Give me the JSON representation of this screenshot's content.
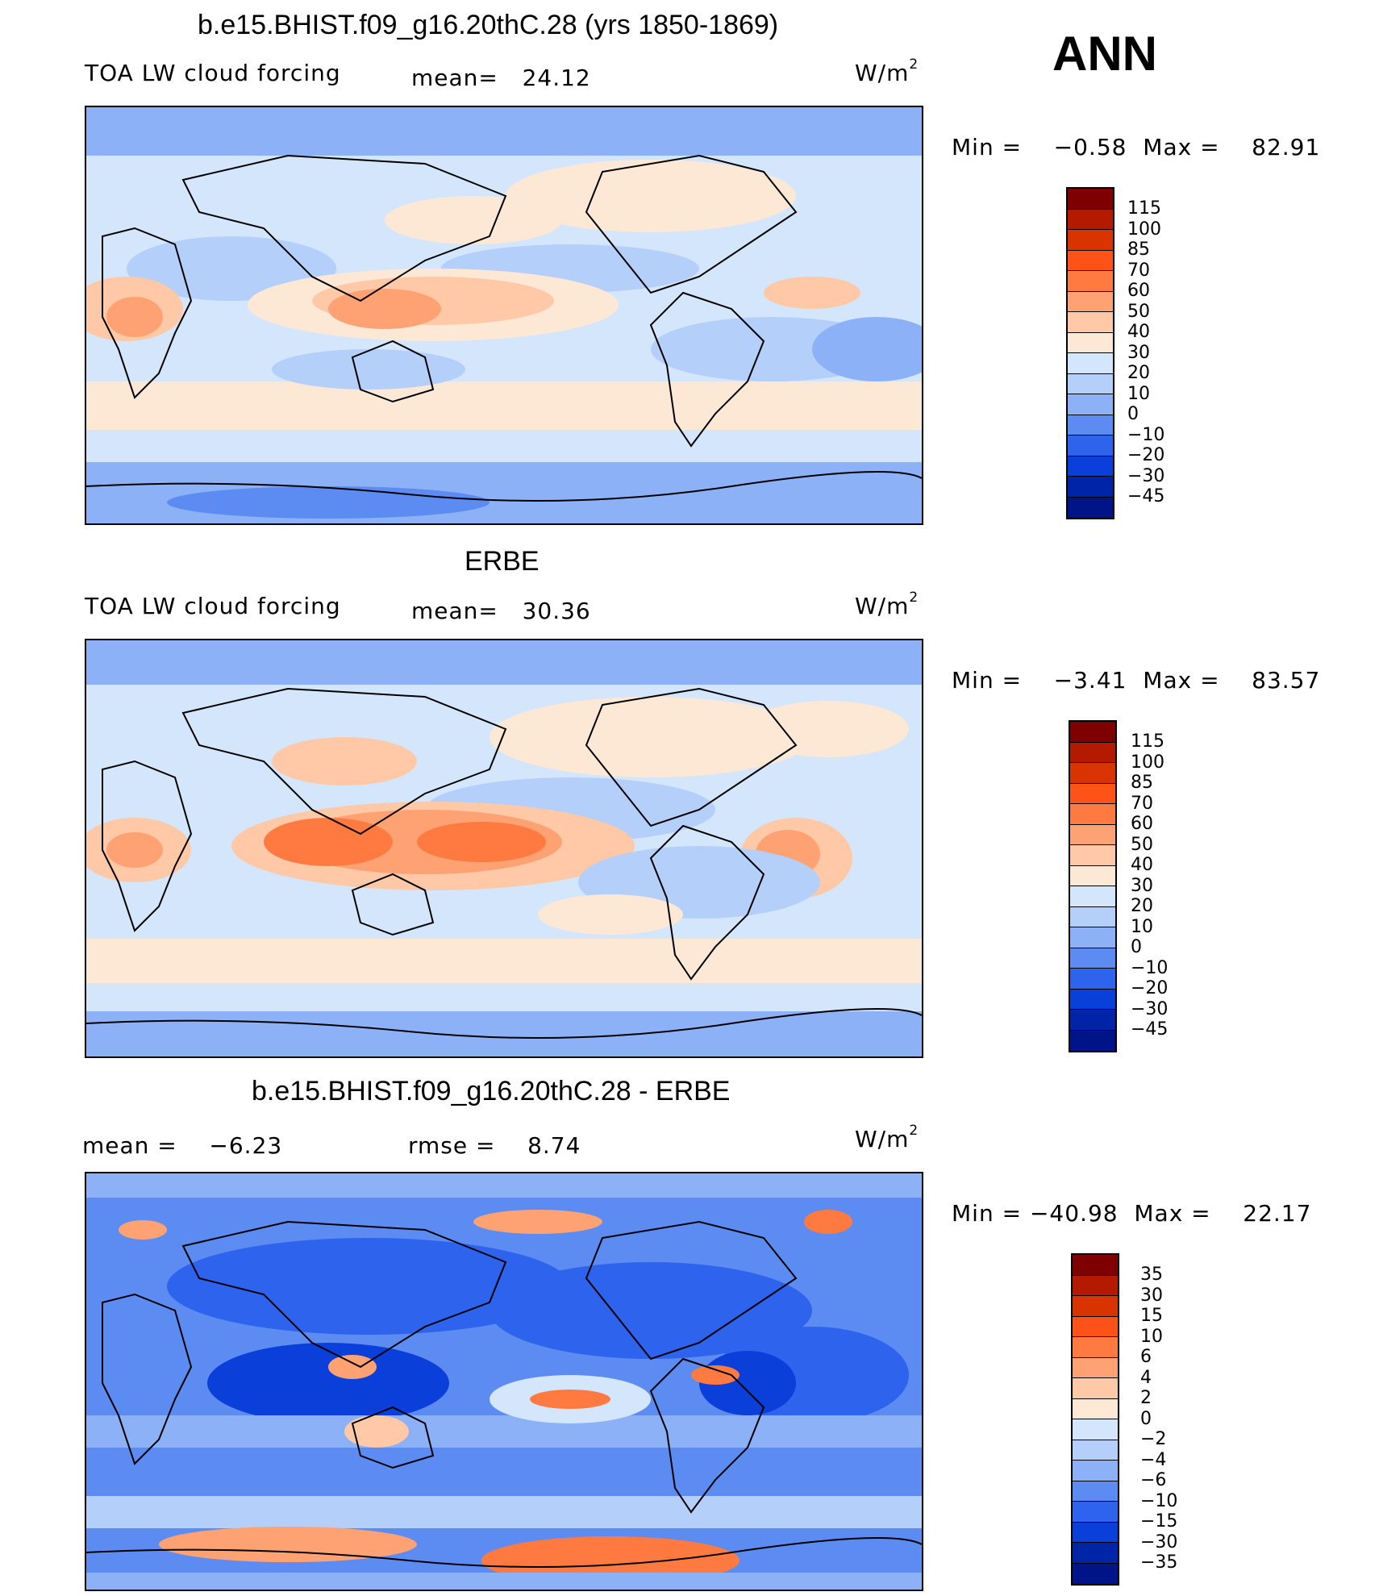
{
  "panels": [
    {
      "title": "b.e15.BHIST.f09_g16.20thC.28 (yrs 1850-1869)",
      "left_label": "TOA LW cloud forcing",
      "mid_label": "mean=",
      "mid_value": "24.12",
      "units_base": "W/m",
      "units_sup": "2",
      "min_label": "Min =",
      "min_value": "−0.58",
      "max_label": "Max =",
      "max_value": "82.91",
      "colorbar_ticks": [
        "115",
        "100",
        "85",
        "70",
        "60",
        "50",
        "40",
        "30",
        "20",
        "10",
        "0",
        "−10",
        "−20",
        "−30",
        "−45"
      ]
    },
    {
      "title": "ERBE",
      "left_label": "TOA LW cloud forcing",
      "mid_label": "mean=",
      "mid_value": "30.36",
      "units_base": "W/m",
      "units_sup": "2",
      "min_label": "Min =",
      "min_value": "−3.41",
      "max_label": "Max =",
      "max_value": "83.57",
      "colorbar_ticks": [
        "115",
        "100",
        "85",
        "70",
        "60",
        "50",
        "40",
        "30",
        "20",
        "10",
        "0",
        "−10",
        "−20",
        "−30",
        "−45"
      ]
    },
    {
      "title": "b.e15.BHIST.f09_g16.20thC.28 - ERBE",
      "left_label": "mean =",
      "left_value": "−6.23",
      "mid_label": "rmse =",
      "mid_value": "8.74",
      "units_base": "W/m",
      "units_sup": "2",
      "min_label": "Min =",
      "min_value": "−40.98",
      "max_label": "Max =",
      "max_value": "22.17",
      "colorbar_ticks": [
        "35",
        "30",
        "15",
        "10",
        "6",
        "4",
        "2",
        "0",
        "−2",
        "−4",
        "−6",
        "−10",
        "−15",
        "−30",
        "−35"
      ]
    }
  ],
  "season": "ANN",
  "colorbar_colors": [
    "#7f0000",
    "#b31a00",
    "#d93300",
    "#ff5219",
    "#ff7a40",
    "#ffa273",
    "#ffc8a6",
    "#fde8d6",
    "#d3e6fb",
    "#b3cffa",
    "#8cb1f7",
    "#5c8cf2",
    "#2e63ee",
    "#0a3fd9",
    "#0024a8",
    "#00148a"
  ]
}
